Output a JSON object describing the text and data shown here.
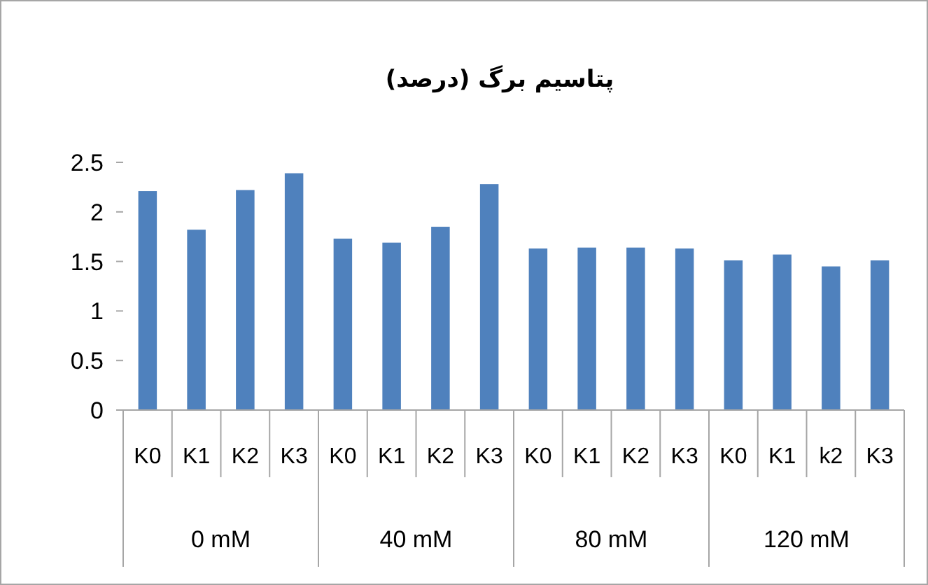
{
  "chart_data": {
    "type": "bar",
    "title": "پتاسیم برگ (درصد)",
    "categories": [
      "K0",
      "K1",
      "K2",
      "K3",
      "K0",
      "K1",
      "K2",
      "K3",
      "K0",
      "K1",
      "K2",
      "K3",
      "K0",
      "K1",
      "k2",
      "K3"
    ],
    "values": [
      2.21,
      1.82,
      2.22,
      2.39,
      1.73,
      1.69,
      1.85,
      2.28,
      1.63,
      1.64,
      1.64,
      1.63,
      1.51,
      1.57,
      1.45,
      1.51
    ],
    "color": "#4f81bd",
    "ylim": [
      0,
      2.5
    ],
    "yticks": [
      0,
      0.5,
      1,
      1.5,
      2,
      2.5
    ],
    "annotations": [
      "0 mM",
      "40 mM",
      "80 mM",
      "120 mM"
    ]
  }
}
